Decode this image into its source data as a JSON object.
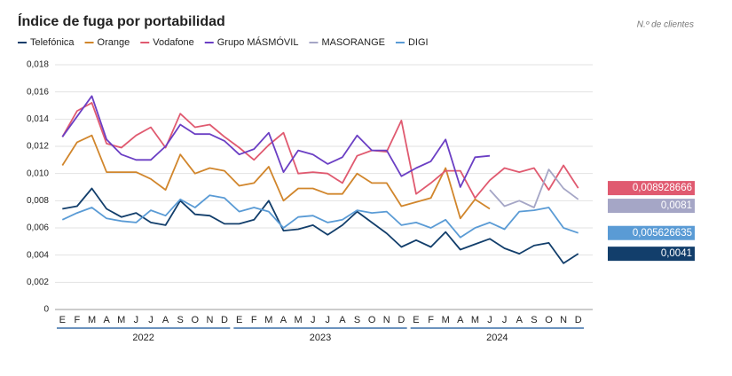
{
  "chart_data": {
    "type": "line",
    "title": "Índice de fuga por portabilidad",
    "subtitle": "N.º de clientes",
    "categories": [
      "E",
      "F",
      "M",
      "A",
      "M",
      "J",
      "J",
      "A",
      "S",
      "O",
      "N",
      "D",
      "E",
      "F",
      "M",
      "A",
      "M",
      "J",
      "J",
      "A",
      "S",
      "O",
      "N",
      "D",
      "E",
      "F",
      "M",
      "A",
      "M",
      "J",
      "J",
      "A",
      "S",
      "O",
      "N",
      "D"
    ],
    "groups": [
      "2022",
      "2023",
      "2024"
    ],
    "ylim": [
      0,
      0.018
    ],
    "yticks": [
      0,
      {
        "value": 0.002,
        "label": "0,002"
      },
      {
        "value": 0.004,
        "label": "0,004"
      },
      {
        "value": 0.006,
        "label": "0,006"
      },
      {
        "value": 0.008,
        "label": "0,008"
      },
      {
        "value": 0.01,
        "label": "0,010"
      },
      {
        "value": 0.012,
        "label": "0,012"
      },
      {
        "value": 0.014,
        "label": "0,014"
      },
      {
        "value": 0.016,
        "label": "0,016"
      },
      {
        "value": 0.018,
        "label": "0,018"
      }
    ],
    "grid": true,
    "series": [
      {
        "name": "Telefónica",
        "color": "#123e6b",
        "values": [
          0.0074,
          0.0076,
          0.0089,
          0.0074,
          0.0068,
          0.0071,
          0.0064,
          0.0062,
          0.008,
          0.007,
          0.0069,
          0.0063,
          0.0063,
          0.0066,
          0.008,
          0.0058,
          0.0059,
          0.0062,
          0.0055,
          0.0062,
          0.0072,
          0.0064,
          0.0056,
          0.0046,
          0.0051,
          0.0046,
          0.0057,
          0.0044,
          0.0048,
          0.0052,
          0.0045,
          0.0041,
          0.0047,
          0.0049,
          0.0034,
          0.0041
        ],
        "value_labels": [
          null,
          null,
          null,
          null,
          null,
          null,
          null,
          null,
          null,
          null,
          null,
          null,
          null,
          null,
          null,
          null,
          null,
          null,
          null,
          null,
          null,
          null,
          null,
          null,
          null,
          null,
          null,
          null,
          null,
          null,
          null,
          null,
          null,
          null,
          null,
          "0,0041"
        ]
      },
      {
        "name": "Orange",
        "color": "#d1862c",
        "values": [
          0.0106,
          0.0123,
          0.0128,
          0.0101,
          0.0101,
          0.0101,
          0.0096,
          0.0088,
          0.0114,
          0.01,
          0.0104,
          0.0102,
          0.0091,
          0.0093,
          0.0105,
          0.008,
          0.0089,
          0.0089,
          0.0085,
          0.0085,
          0.01,
          0.0093,
          0.0093,
          0.0076,
          0.0079,
          0.0082,
          0.0104,
          0.0067,
          0.0081,
          0.0074,
          null,
          null,
          null,
          null,
          null,
          null
        ]
      },
      {
        "name": "Vodafone",
        "color": "#e05a70",
        "values": [
          0.0127,
          0.0146,
          0.0152,
          0.0122,
          0.0119,
          0.0128,
          0.0134,
          0.0119,
          0.0144,
          0.0134,
          0.0136,
          0.0127,
          0.0119,
          0.011,
          0.0121,
          0.013,
          0.01,
          0.0101,
          0.01,
          0.0093,
          0.0113,
          0.0117,
          0.0116,
          0.0139,
          0.0085,
          0.0093,
          0.0102,
          0.0102,
          0.0082,
          0.0095,
          0.0104,
          0.0101,
          0.0104,
          0.0088,
          0.0106,
          0.008928666
        ],
        "value_labels": [
          null,
          null,
          null,
          null,
          null,
          null,
          null,
          null,
          null,
          null,
          null,
          null,
          null,
          null,
          null,
          null,
          null,
          null,
          null,
          null,
          null,
          null,
          null,
          null,
          null,
          null,
          null,
          null,
          null,
          null,
          null,
          null,
          null,
          null,
          null,
          "0,008928666"
        ]
      },
      {
        "name": "Grupo MÁSMÓVIL",
        "color": "#6b3fc4",
        "values": [
          0.0127,
          0.0142,
          0.0157,
          0.0125,
          0.0114,
          0.011,
          0.011,
          0.012,
          0.0136,
          0.0129,
          0.0129,
          0.0124,
          0.0114,
          0.0118,
          0.013,
          0.0101,
          0.0117,
          0.0114,
          0.0107,
          0.0112,
          0.0128,
          0.0117,
          0.0117,
          0.0098,
          0.0104,
          0.0109,
          0.0125,
          0.009,
          0.0112,
          0.0113,
          null,
          null,
          null,
          null,
          null,
          null
        ]
      },
      {
        "name": "MASORANGE",
        "color": "#a5a6c6",
        "values": [
          null,
          null,
          null,
          null,
          null,
          null,
          null,
          null,
          null,
          null,
          null,
          null,
          null,
          null,
          null,
          null,
          null,
          null,
          null,
          null,
          null,
          null,
          null,
          null,
          null,
          null,
          null,
          null,
          null,
          0.0088,
          0.0076,
          0.008,
          0.0075,
          0.0103,
          0.0089,
          0.0081
        ],
        "value_labels": [
          null,
          null,
          null,
          null,
          null,
          null,
          null,
          null,
          null,
          null,
          null,
          null,
          null,
          null,
          null,
          null,
          null,
          null,
          null,
          null,
          null,
          null,
          null,
          null,
          null,
          null,
          null,
          null,
          null,
          null,
          null,
          null,
          null,
          null,
          null,
          "0,0081"
        ]
      },
      {
        "name": "DIGI",
        "color": "#5a9bd5",
        "values": [
          0.0066,
          0.0071,
          0.0075,
          0.0067,
          0.0065,
          0.0064,
          0.0073,
          0.0069,
          0.0081,
          0.0075,
          0.0084,
          0.0082,
          0.0072,
          0.0075,
          0.0072,
          0.006,
          0.0068,
          0.0069,
          0.0064,
          0.0066,
          0.0073,
          0.0071,
          0.0072,
          0.0062,
          0.0064,
          0.006,
          0.0066,
          0.0053,
          0.006,
          0.0064,
          0.0059,
          0.0072,
          0.0073,
          0.0075,
          0.006,
          0.005626635
        ],
        "value_labels": [
          null,
          null,
          null,
          null,
          null,
          null,
          null,
          null,
          null,
          null,
          null,
          null,
          null,
          null,
          null,
          null,
          null,
          null,
          null,
          null,
          null,
          null,
          null,
          null,
          null,
          null,
          null,
          null,
          null,
          null,
          null,
          null,
          null,
          null,
          null,
          "0,005626635"
        ]
      }
    ]
  }
}
